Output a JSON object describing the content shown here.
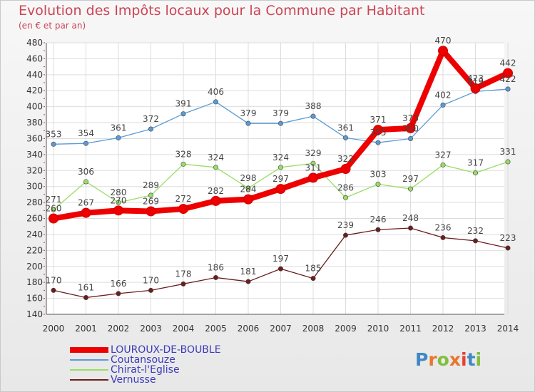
{
  "title": "Evolution des Impôts locaux pour la Commune par Habitant",
  "subtitle": "(en € et par an)",
  "logo": {
    "text": "Proxiti"
  },
  "chart_data": {
    "type": "line",
    "title": "Evolution des Impôts locaux pour la Commune par Habitant",
    "subtitle": "(en € et par an)",
    "xlabel": "",
    "ylabel": "",
    "x": [
      "2000",
      "2001",
      "2002",
      "2003",
      "2004",
      "2005",
      "2006",
      "2007",
      "2008",
      "2009",
      "2010",
      "2011",
      "2012",
      "2013",
      "2014"
    ],
    "ylim": [
      140,
      480
    ],
    "yticks": [
      140,
      160,
      180,
      200,
      220,
      240,
      260,
      280,
      300,
      320,
      340,
      360,
      380,
      400,
      420,
      440,
      460,
      480
    ],
    "grid": true,
    "legend_position": "bottom-left",
    "series": [
      {
        "name": "LOUROUX-DE-BOUBLE",
        "color": "#ee0000",
        "emphasis": true,
        "values": [
          260,
          267,
          270,
          269,
          272,
          282,
          284,
          297,
          311,
          322,
          371,
          373,
          470,
          423,
          442
        ]
      },
      {
        "name": "Coutansouze",
        "color": "#5b9bd5",
        "values": [
          353,
          354,
          361,
          372,
          391,
          406,
          379,
          379,
          388,
          361,
          355,
          360,
          402,
          419,
          422
        ]
      },
      {
        "name": "Chirat-l'Eglise",
        "color": "#99dd66",
        "values": [
          271,
          306,
          280,
          289,
          328,
          324,
          298,
          324,
          329,
          286,
          303,
          297,
          327,
          317,
          331
        ]
      },
      {
        "name": "Vernusse",
        "color": "#6b1d1d",
        "values": [
          170,
          161,
          166,
          170,
          178,
          186,
          181,
          197,
          185,
          239,
          246,
          248,
          236,
          232,
          223
        ]
      }
    ]
  }
}
